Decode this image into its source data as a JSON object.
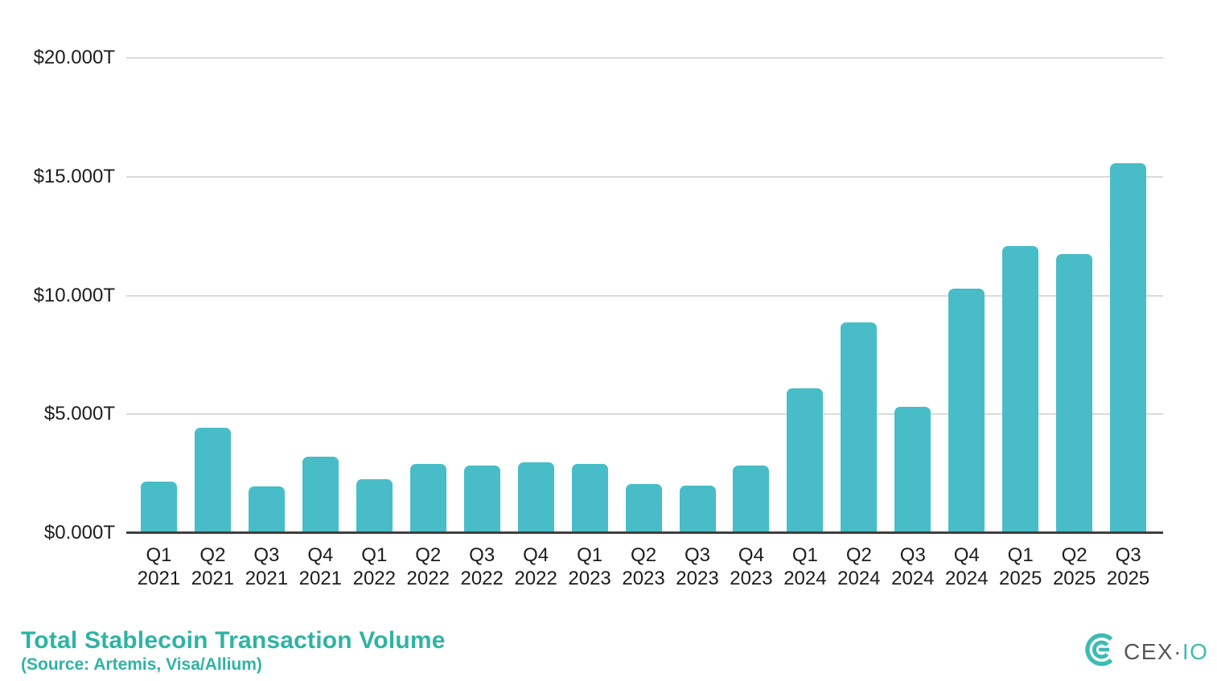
{
  "chart_data": {
    "type": "bar",
    "title": "Total Stablecoin Transaction Volume",
    "subtitle": "(Source: Artemis, Visa/Allium)",
    "categories": [
      {
        "quarter": "Q1",
        "year": "2021"
      },
      {
        "quarter": "Q2",
        "year": "2021"
      },
      {
        "quarter": "Q3",
        "year": "2021"
      },
      {
        "quarter": "Q4",
        "year": "2021"
      },
      {
        "quarter": "Q1",
        "year": "2022"
      },
      {
        "quarter": "Q2",
        "year": "2022"
      },
      {
        "quarter": "Q3",
        "year": "2022"
      },
      {
        "quarter": "Q4",
        "year": "2022"
      },
      {
        "quarter": "Q1",
        "year": "2023"
      },
      {
        "quarter": "Q2",
        "year": "2023"
      },
      {
        "quarter": "Q3",
        "year": "2023"
      },
      {
        "quarter": "Q4",
        "year": "2023"
      },
      {
        "quarter": "Q1",
        "year": "2024"
      },
      {
        "quarter": "Q2",
        "year": "2024"
      },
      {
        "quarter": "Q3",
        "year": "2024"
      },
      {
        "quarter": "Q4",
        "year": "2024"
      },
      {
        "quarter": "Q1",
        "year": "2025"
      },
      {
        "quarter": "Q2",
        "year": "2025"
      },
      {
        "quarter": "Q3",
        "year": "2025"
      }
    ],
    "values": [
      2.18,
      4.44,
      1.97,
      3.22,
      2.28,
      2.92,
      2.85,
      2.99,
      2.92,
      2.07,
      2.01,
      2.85,
      6.1,
      8.87,
      5.32,
      10.29,
      12.09,
      11.75,
      15.57
    ],
    "unit": "trillion USD",
    "xlabel": "",
    "ylabel": "",
    "ylim": [
      0,
      20
    ],
    "y_ticks": [
      {
        "value": 20,
        "label": "$20.000T"
      },
      {
        "value": 15,
        "label": "$15.000T"
      },
      {
        "value": 10,
        "label": "$10.000T"
      },
      {
        "value": 5,
        "label": "$5.000T"
      },
      {
        "value": 0,
        "label": "$0.000T"
      }
    ],
    "grid": true,
    "legend": false
  },
  "footer": {
    "title": "Total Stablecoin Transaction Volume",
    "source": "(Source: Artemis, Visa/Allium)"
  },
  "logo": {
    "mark": "cex-io-emblem",
    "wordmark_gray": "CEX",
    "separator": "·",
    "wordmark_teal": "IO"
  },
  "colors": {
    "bar": "#48bdc7",
    "title": "#2fb3a4",
    "logo_teal": "#3cbcb2",
    "logo_gray": "#54565a",
    "gridline": "#dbdbdb",
    "axis_line": "#3f3f3f",
    "axis_text": "#1d1d1d"
  }
}
